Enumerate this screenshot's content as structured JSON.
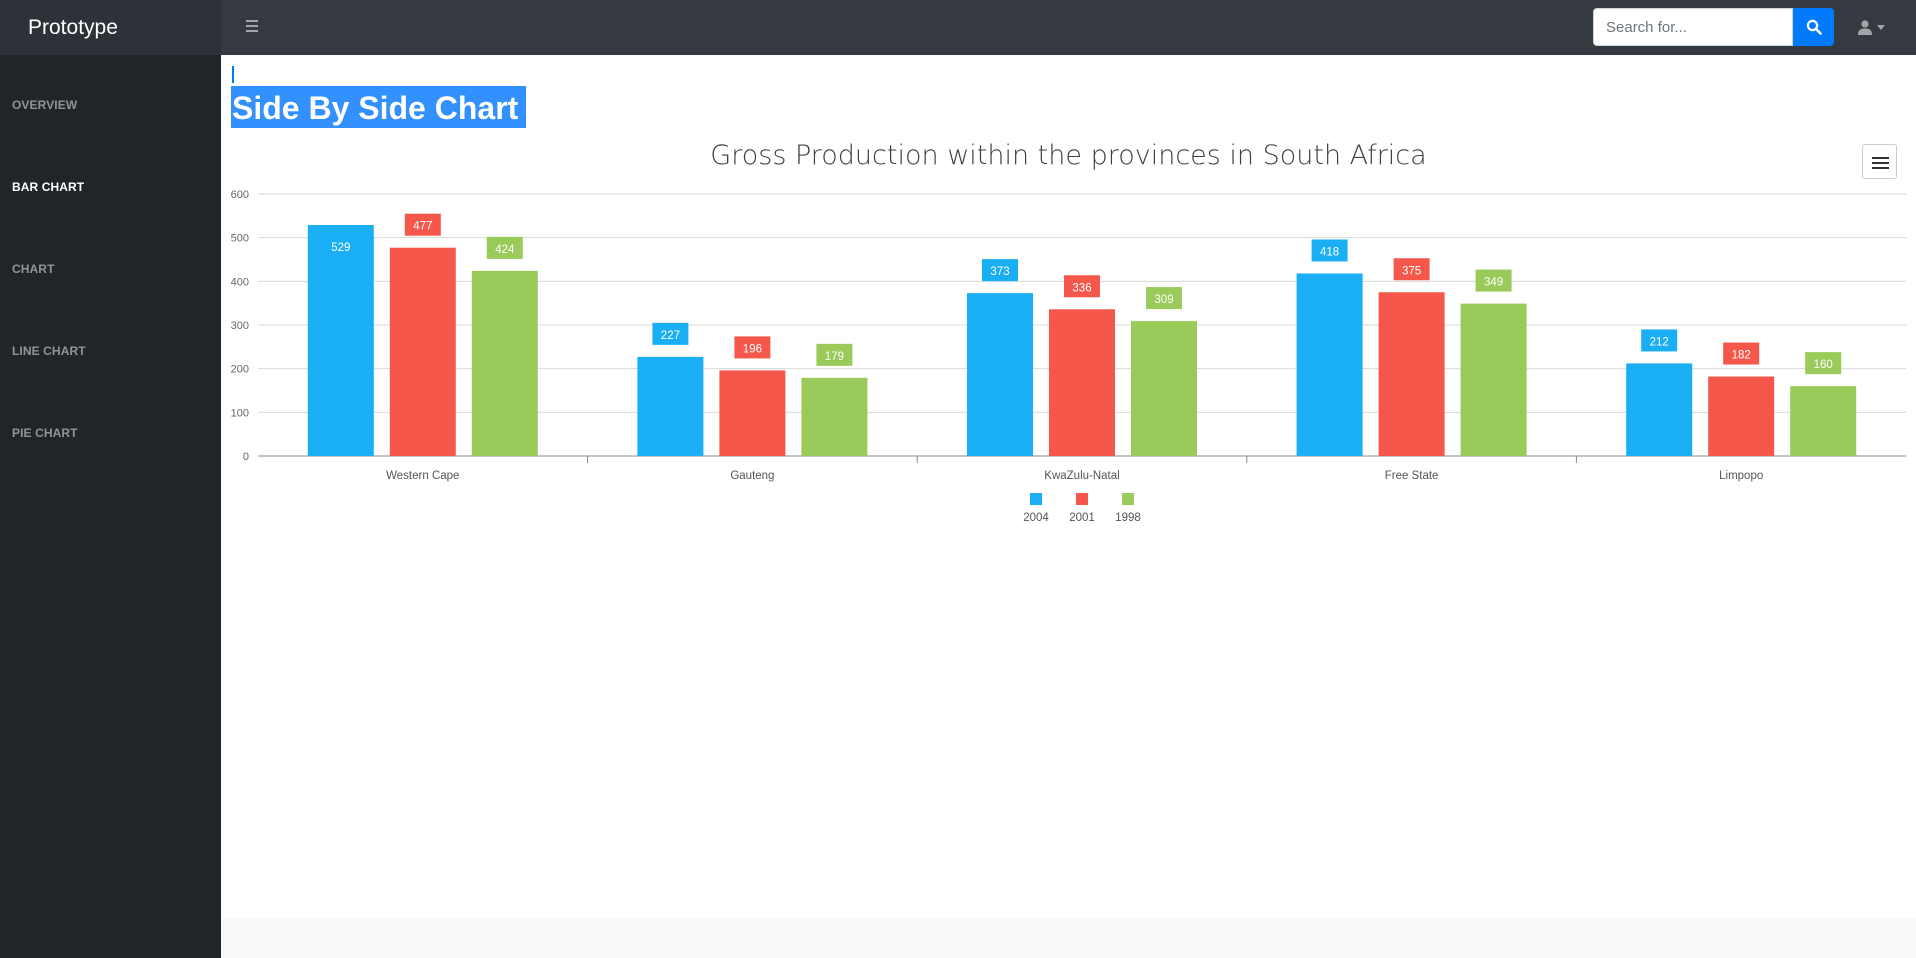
{
  "app": {
    "brand": "Prototype"
  },
  "search": {
    "placeholder": "Search for..."
  },
  "sidebar": {
    "items": [
      {
        "label": "OVERVIEW"
      },
      {
        "label": "BAR CHART"
      },
      {
        "label": "CHART"
      },
      {
        "label": "LINE CHART"
      },
      {
        "label": "PIE CHART"
      }
    ]
  },
  "page": {
    "title": "Side By Side Chart"
  },
  "colors": {
    "accent": "#007bff",
    "series_2004": "#1aaff5",
    "series_2001": "#f5574b",
    "series_1998": "#99ca5a"
  },
  "chart_data": {
    "type": "bar",
    "title": "Gross Production within the provinces in South Africa",
    "categories": [
      "Western Cape",
      "Gauteng",
      "KwaZulu-Natal",
      "Free State",
      "Limpopo"
    ],
    "series": [
      {
        "name": "2004",
        "color": "#1aaff5",
        "values": [
          529,
          227,
          373,
          418,
          212
        ]
      },
      {
        "name": "2001",
        "color": "#f5574b",
        "values": [
          477,
          196,
          336,
          375,
          182
        ]
      },
      {
        "name": "1998",
        "color": "#99ca5a",
        "values": [
          424,
          179,
          309,
          349,
          160
        ]
      }
    ],
    "ylim": [
      0,
      600
    ],
    "yticks": [
      0,
      100,
      200,
      300,
      400,
      500,
      600
    ],
    "grid": true,
    "legend": "bottom-center",
    "data_labels": true
  }
}
